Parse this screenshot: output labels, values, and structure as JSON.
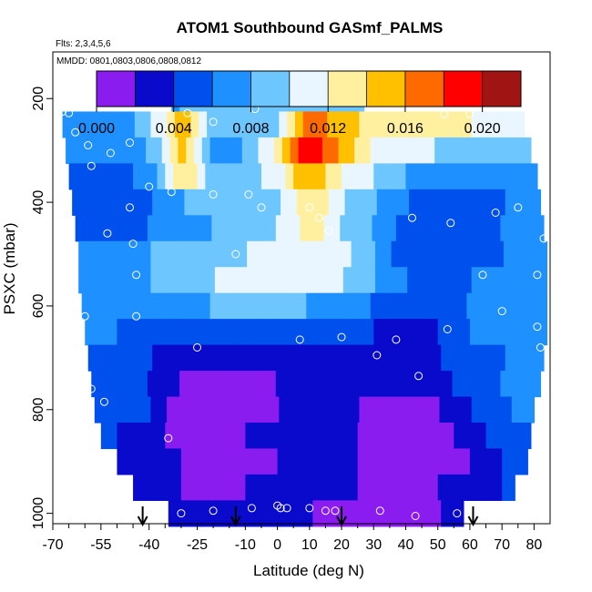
{
  "chart_data": {
    "type": "heatmap",
    "title": "ATOM1 Southbound GASmf_PALMS",
    "subtitle_flights": "Flts: 2,3,4,5,6",
    "subtitle_dates": "MMDD: 0801,0803,0806,0808,0812",
    "xlabel": "Latitude (deg N)",
    "ylabel": "PSXC (mbar)",
    "xlim": [
      -70,
      85
    ],
    "ylim": [
      1020,
      110
    ],
    "x_ticks": [
      -70,
      -55,
      -40,
      -25,
      -10,
      0,
      10,
      20,
      30,
      40,
      50,
      60,
      70,
      80
    ],
    "x_tick_labels": [
      "-70",
      "-55",
      "-40",
      "-25",
      "-10",
      "0",
      "10",
      "20",
      "30",
      "40",
      "50",
      "60",
      "70",
      "80"
    ],
    "x_minor_ticks": [
      -65,
      -60,
      -50,
      -45,
      -35,
      -30,
      -20,
      -15,
      -5,
      5,
      15,
      25,
      35,
      45,
      55,
      65,
      75
    ],
    "y_ticks": [
      200,
      400,
      600,
      800,
      1000
    ],
    "y_tick_labels": [
      "200",
      "400",
      "600",
      "800",
      "1000"
    ],
    "colorbar": {
      "min": 0.0,
      "max": 0.022,
      "ticks": [
        0.0,
        0.004,
        0.008,
        0.012,
        0.016,
        0.02
      ],
      "tick_labels": [
        "0.000",
        "0.004",
        "0.008",
        "0.012",
        "0.016",
        "0.020"
      ],
      "bands": [
        0.0,
        0.002,
        0.004,
        0.006,
        0.008,
        0.01,
        0.012,
        0.014,
        0.016,
        0.018,
        0.02,
        0.022
      ],
      "colors": [
        "#8a1cf0",
        "#0a0acc",
        "#0050ee",
        "#1e90ff",
        "#6ec6ff",
        "#eaf6ff",
        "#fff0a0",
        "#ffc000",
        "#ff6a00",
        "#ff0000",
        "#a01414"
      ]
    },
    "flight_arrows_lat": [
      -42,
      -13,
      20,
      61
    ],
    "pressure_levels": [
      200,
      250,
      300,
      350,
      400,
      450,
      500,
      550,
      600,
      650,
      700,
      750,
      800,
      850,
      900,
      950,
      1000
    ],
    "level_lat_extent": [
      [
        -33,
        27
      ],
      [
        -67,
        77
      ],
      [
        -66,
        79
      ],
      [
        -65,
        81
      ],
      [
        -64,
        82
      ],
      [
        -63,
        83
      ],
      [
        -62,
        84
      ],
      [
        -62,
        84
      ],
      [
        -61,
        84
      ],
      [
        -60,
        84
      ],
      [
        -59,
        83
      ],
      [
        -58,
        82
      ],
      [
        -57,
        80
      ],
      [
        -55,
        79
      ],
      [
        -50,
        78
      ],
      [
        -45,
        74
      ],
      [
        -34,
        58
      ]
    ],
    "grid_lat": [
      -70,
      -60,
      -50,
      -40,
      -30,
      -20,
      -10,
      0,
      10,
      20,
      30,
      40,
      50,
      60,
      70,
      80
    ],
    "values": [
      [
        0.007,
        0.007,
        0.007,
        0.007,
        0.008,
        0.008,
        0.008,
        0.008,
        0.008,
        0.008,
        0.008,
        0.008,
        0.008,
        0.008,
        0.008,
        0.008
      ],
      [
        0.006,
        0.007,
        0.007,
        0.009,
        0.016,
        0.008,
        0.008,
        0.01,
        0.017,
        0.015,
        0.013,
        0.013,
        0.013,
        0.012,
        0.011,
        0.011
      ],
      [
        0.006,
        0.006,
        0.006,
        0.008,
        0.015,
        0.007,
        0.008,
        0.012,
        0.02,
        0.015,
        0.012,
        0.01,
        0.01,
        0.009,
        0.009,
        0.009
      ],
      [
        0.006,
        0.005,
        0.005,
        0.007,
        0.014,
        0.009,
        0.009,
        0.011,
        0.016,
        0.012,
        0.01,
        0.008,
        0.007,
        0.007,
        0.007,
        0.007
      ],
      [
        0.006,
        0.005,
        0.005,
        0.006,
        0.008,
        0.009,
        0.009,
        0.009,
        0.014,
        0.01,
        0.008,
        0.006,
        0.005,
        0.005,
        0.006,
        0.006
      ],
      [
        0.006,
        0.005,
        0.005,
        0.006,
        0.007,
        0.008,
        0.009,
        0.01,
        0.013,
        0.01,
        0.008,
        0.005,
        0.004,
        0.004,
        0.006,
        0.006
      ],
      [
        0.007,
        0.007,
        0.007,
        0.008,
        0.009,
        0.009,
        0.01,
        0.01,
        0.012,
        0.011,
        0.008,
        0.005,
        0.004,
        0.005,
        0.006,
        0.007
      ],
      [
        0.007,
        0.007,
        0.007,
        0.008,
        0.009,
        0.01,
        0.01,
        0.011,
        0.011,
        0.01,
        0.008,
        0.006,
        0.005,
        0.006,
        0.007,
        0.007
      ],
      [
        0.007,
        0.007,
        0.007,
        0.007,
        0.007,
        0.008,
        0.008,
        0.008,
        0.008,
        0.007,
        0.006,
        0.005,
        0.005,
        0.006,
        0.007,
        0.007
      ],
      [
        0.007,
        0.007,
        0.006,
        0.005,
        0.004,
        0.004,
        0.004,
        0.004,
        0.004,
        0.004,
        0.004,
        0.003,
        0.004,
        0.006,
        0.007,
        0.007
      ],
      [
        0.007,
        0.006,
        0.005,
        0.004,
        0.003,
        0.002,
        0.002,
        0.003,
        0.003,
        0.003,
        0.003,
        0.003,
        0.004,
        0.005,
        0.006,
        0.006
      ],
      [
        0.006,
        0.006,
        0.005,
        0.004,
        0.002,
        0.001,
        0.001,
        0.002,
        0.002,
        0.002,
        0.003,
        0.002,
        0.003,
        0.005,
        0.006,
        0.006
      ],
      [
        0.006,
        0.005,
        0.005,
        0.004,
        0.001,
        0.001,
        0.001,
        0.002,
        0.002,
        0.003,
        0.001,
        0.001,
        0.002,
        0.004,
        0.006,
        0.006
      ],
      [
        0.005,
        0.005,
        0.004,
        0.003,
        0.001,
        0.001,
        0.002,
        0.002,
        0.003,
        0.003,
        0.001,
        0.001,
        0.001,
        0.003,
        0.005,
        0.006
      ],
      [
        0.005,
        0.005,
        0.004,
        0.003,
        0.002,
        0.001,
        0.001,
        0.002,
        0.003,
        0.003,
        0.001,
        0.001,
        0.001,
        0.002,
        0.004,
        0.005
      ],
      [
        0.005,
        0.005,
        0.004,
        0.003,
        0.002,
        0.001,
        0.002,
        0.003,
        0.003,
        0.003,
        0.001,
        0.001,
        0.002,
        0.003,
        0.004,
        0.005
      ],
      [
        0.004,
        0.004,
        0.004,
        0.003,
        0.002,
        0.002,
        0.002,
        0.003,
        0.002,
        0.001,
        0.001,
        0.001,
        0.002,
        0.003,
        0.004,
        0.005
      ]
    ],
    "sample_points": [
      [
        27,
        180
      ],
      [
        -34,
        205
      ],
      [
        -67,
        225
      ],
      [
        -65,
        228
      ],
      [
        -28,
        228
      ],
      [
        -7,
        220
      ],
      [
        -20,
        245
      ],
      [
        -63,
        265
      ],
      [
        -46,
        285
      ],
      [
        -59,
        290
      ],
      [
        -52,
        305
      ],
      [
        -58,
        330
      ],
      [
        -40,
        370
      ],
      [
        -33,
        380
      ],
      [
        52,
        230
      ],
      [
        60,
        230
      ],
      [
        62,
        265
      ],
      [
        -46,
        410
      ],
      [
        10,
        410
      ],
      [
        -5,
        410
      ],
      [
        13,
        430
      ],
      [
        42,
        430
      ],
      [
        54,
        440
      ],
      [
        68,
        420
      ],
      [
        75,
        410
      ],
      [
        -53,
        460
      ],
      [
        -45,
        480
      ],
      [
        -44,
        540
      ],
      [
        -13,
        500
      ],
      [
        16,
        455
      ],
      [
        83,
        470
      ],
      [
        81,
        540
      ],
      [
        64,
        540
      ],
      [
        -9,
        385
      ],
      [
        -20,
        385
      ],
      [
        -44,
        620
      ],
      [
        -60,
        620
      ],
      [
        -25,
        680
      ],
      [
        7,
        665
      ],
      [
        20,
        660
      ],
      [
        31,
        695
      ],
      [
        37,
        665
      ],
      [
        53,
        645
      ],
      [
        70,
        610
      ],
      [
        81,
        640
      ],
      [
        82,
        680
      ],
      [
        -58,
        760
      ],
      [
        -54,
        785
      ],
      [
        44,
        735
      ],
      [
        -34,
        855
      ],
      [
        81,
        845
      ],
      [
        81,
        900
      ],
      [
        -30,
        1000
      ],
      [
        -20,
        995
      ],
      [
        -8,
        990
      ],
      [
        0,
        985
      ],
      [
        1,
        990
      ],
      [
        3,
        990
      ],
      [
        10,
        990
      ],
      [
        15,
        995
      ],
      [
        18,
        995
      ],
      [
        32,
        995
      ],
      [
        43,
        1005
      ],
      [
        56,
        1000
      ]
    ]
  }
}
